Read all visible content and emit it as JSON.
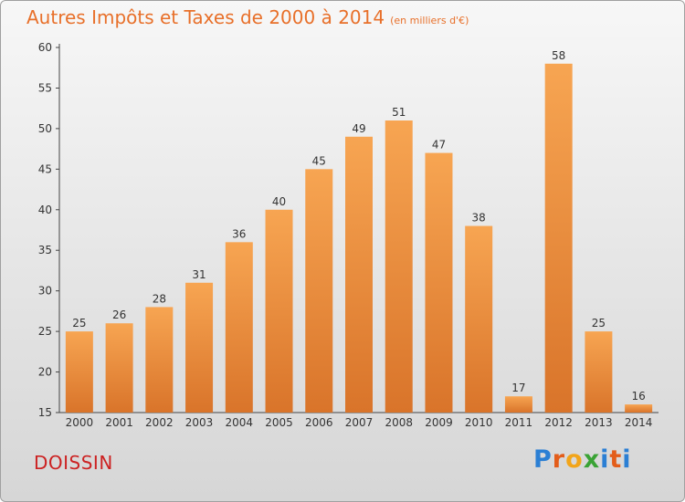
{
  "header": {
    "title": "Autres Impôts et Taxes de 2000 à 2014",
    "unit": "(en milliers d'€)"
  },
  "footer": {
    "commune": "DOISSIN",
    "logo_letters": [
      {
        "ch": "P",
        "color": "#2b7fd4"
      },
      {
        "ch": "r",
        "color": "#e35d1a"
      },
      {
        "ch": "o",
        "color": "#f2a51a"
      },
      {
        "ch": "x",
        "color": "#3aa335"
      },
      {
        "ch": "i",
        "color": "#2b7fd4"
      },
      {
        "ch": "t",
        "color": "#e35d1a"
      },
      {
        "ch": "i",
        "color": "#2b7fd4"
      }
    ]
  },
  "chart_data": {
    "type": "bar",
    "title": "Autres Impôts et Taxes de 2000 à 2014",
    "subtitle": "(en milliers d'€)",
    "categories": [
      "2000",
      "2001",
      "2002",
      "2003",
      "2004",
      "2005",
      "2006",
      "2007",
      "2008",
      "2009",
      "2010",
      "2011",
      "2012",
      "2013",
      "2014"
    ],
    "values": [
      25,
      26,
      28,
      31,
      36,
      40,
      45,
      49,
      51,
      47,
      38,
      17,
      58,
      25,
      16
    ],
    "ylim": [
      15,
      60
    ],
    "yticks": [
      15,
      20,
      25,
      30,
      35,
      40,
      45,
      50,
      55,
      60
    ],
    "grid": false,
    "bar_color_top": "#f7a552",
    "bar_color_bottom": "#d9742a"
  }
}
